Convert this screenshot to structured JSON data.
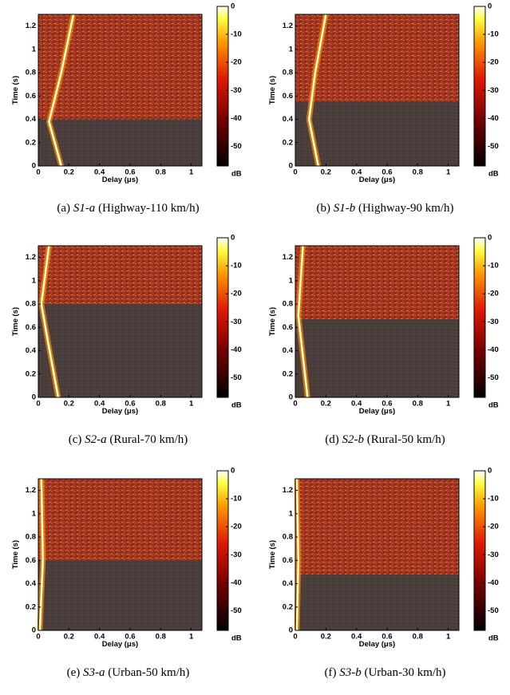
{
  "chart_data": [
    {
      "type": "heatmap",
      "xlabel": "Delay (μs)",
      "ylabel": "Time (s)",
      "xlim": [
        0,
        1.07
      ],
      "xticks": [
        0,
        0.2,
        0.4,
        0.6,
        0.8,
        1
      ],
      "ylim": [
        0,
        1.3
      ],
      "yticks": [
        0,
        0.2,
        0.4,
        0.6,
        0.8,
        1,
        1.2
      ],
      "clim": [
        -57,
        0
      ],
      "cticks": [
        0,
        -10,
        -20,
        -30,
        -40,
        -50
      ],
      "clabel": "dB",
      "bright_region_start": 0.4,
      "ridge": {
        "x": [
          0.15,
          0.07,
          0.15,
          0.23
        ],
        "y": [
          0,
          0.38,
          0.8,
          1.3
        ]
      },
      "caption": {
        "label": "(a)",
        "name": "S1-a",
        "desc": "(Highway-110 km/h)"
      }
    },
    {
      "type": "heatmap",
      "xlabel": "Delay (μs)",
      "ylabel": "Time (s)",
      "xlim": [
        0,
        1.07
      ],
      "xticks": [
        0,
        0.2,
        0.4,
        0.6,
        0.8,
        1
      ],
      "ylim": [
        0,
        1.3
      ],
      "yticks": [
        0,
        0.2,
        0.4,
        0.6,
        0.8,
        1,
        1.2
      ],
      "clim": [
        -57,
        0
      ],
      "cticks": [
        0,
        -10,
        -20,
        -30,
        -40,
        -50
      ],
      "clabel": "dB",
      "bright_region_start": 0.55,
      "ridge": {
        "x": [
          0.15,
          0.09,
          0.13,
          0.2
        ],
        "y": [
          0,
          0.4,
          0.8,
          1.3
        ]
      },
      "caption": {
        "label": "(b)",
        "name": "S1-b",
        "desc": "(Highway-90 km/h)"
      }
    },
    {
      "type": "heatmap",
      "xlabel": "Delay (μs)",
      "ylabel": "Time (s)",
      "xlim": [
        0,
        1.07
      ],
      "xticks": [
        0,
        0.2,
        0.4,
        0.6,
        0.8,
        1
      ],
      "ylim": [
        0,
        1.3
      ],
      "yticks": [
        0,
        0.2,
        0.4,
        0.6,
        0.8,
        1,
        1.2
      ],
      "clim": [
        -57,
        0
      ],
      "cticks": [
        0,
        -10,
        -20,
        -30,
        -40,
        -50
      ],
      "clabel": "dB",
      "bright_region_start": 0.8,
      "ridge": {
        "x": [
          0.13,
          0.06,
          0.02,
          0.07
        ],
        "y": [
          0,
          0.5,
          0.8,
          1.3
        ]
      },
      "caption": {
        "label": "(c)",
        "name": "S2-a",
        "desc": "(Rural-70 km/h)"
      }
    },
    {
      "type": "heatmap",
      "xlabel": "Delay (μs)",
      "ylabel": "Time (s)",
      "xlim": [
        0,
        1.07
      ],
      "xticks": [
        0,
        0.2,
        0.4,
        0.6,
        0.8,
        1
      ],
      "ylim": [
        0,
        1.3
      ],
      "yticks": [
        0,
        0.2,
        0.4,
        0.6,
        0.8,
        1,
        1.2
      ],
      "clim": [
        -57,
        0
      ],
      "cticks": [
        0,
        -10,
        -20,
        -30,
        -40,
        -50
      ],
      "clabel": "dB",
      "bright_region_start": 0.67,
      "ridge": {
        "x": [
          0.08,
          0.02,
          0.05
        ],
        "y": [
          0,
          0.7,
          1.3
        ]
      },
      "caption": {
        "label": "(d)",
        "name": "S2-b",
        "desc": "(Rural-50 km/h)"
      }
    },
    {
      "type": "heatmap",
      "xlabel": "Delay (μs)",
      "ylabel": "Time (s)",
      "xlim": [
        0,
        1.07
      ],
      "xticks": [
        0,
        0.2,
        0.4,
        0.6,
        0.8,
        1
      ],
      "ylim": [
        0,
        1.3
      ],
      "yticks": [
        0,
        0.2,
        0.4,
        0.6,
        0.8,
        1,
        1.2
      ],
      "clim": [
        -57,
        0
      ],
      "cticks": [
        0,
        -10,
        -20,
        -30,
        -40,
        -50
      ],
      "clabel": "dB",
      "bright_region_start": 0.6,
      "ridge": {
        "x": [
          0.01,
          0.03,
          0.02
        ],
        "y": [
          0,
          0.6,
          1.3
        ]
      },
      "caption": {
        "label": "(e)",
        "name": "S3-a",
        "desc": "(Urban-50 km/h)"
      }
    },
    {
      "type": "heatmap",
      "xlabel": "Delay (μs)",
      "ylabel": "Time (s)",
      "xlim": [
        0,
        1.07
      ],
      "xticks": [
        0,
        0.2,
        0.4,
        0.6,
        0.8,
        1
      ],
      "ylim": [
        0,
        1.3
      ],
      "yticks": [
        0,
        0.2,
        0.4,
        0.6,
        0.8,
        1,
        1.2
      ],
      "clim": [
        -57,
        0
      ],
      "cticks": [
        0,
        -10,
        -20,
        -30,
        -40,
        -50
      ],
      "clabel": "dB",
      "bright_region_start": 0.48,
      "ridge": {
        "x": [
          0.01,
          0.02,
          0.01
        ],
        "y": [
          0,
          0.6,
          1.3
        ]
      },
      "caption": {
        "label": "(f)",
        "name": "S3-b",
        "desc": "(Urban-30 km/h)"
      }
    }
  ]
}
